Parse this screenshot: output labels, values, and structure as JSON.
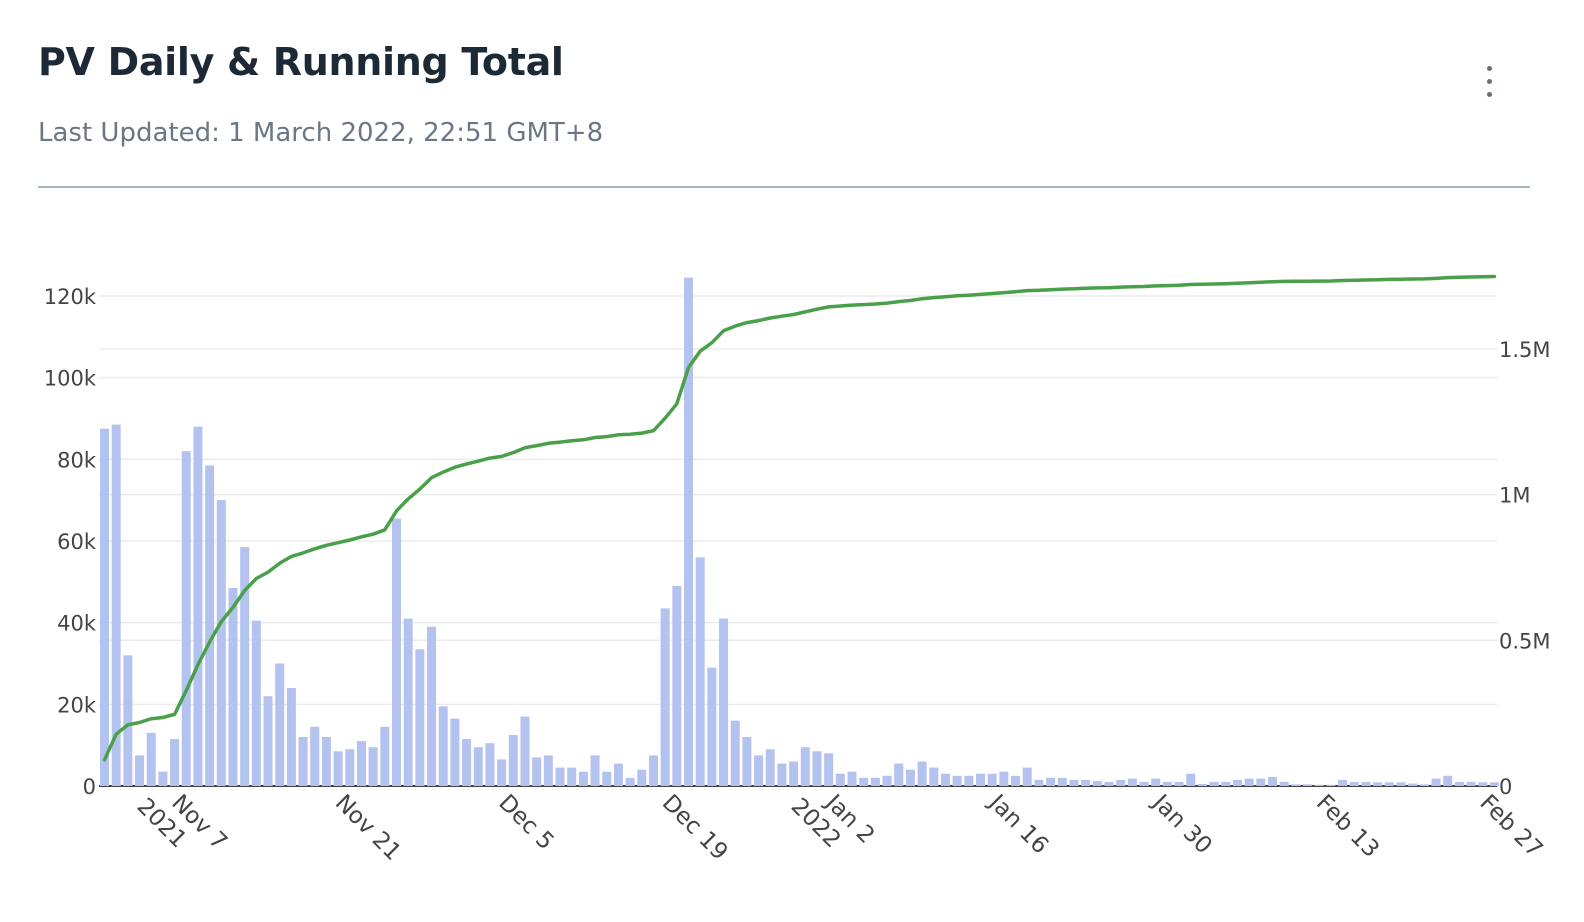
{
  "card": {
    "title": "PV Daily & Running Total",
    "subtitle": "Last Updated: 1 March 2022, 22:51 GMT+8",
    "menu_icon": "more-vertical-icon"
  },
  "chart_data": {
    "type": "bar",
    "start": "2021-11-01",
    "dates": [
      "2021-11-01",
      "2021-11-02",
      "2021-11-03",
      "2021-11-04",
      "2021-11-05",
      "2021-11-06",
      "2021-11-07",
      "2021-11-08",
      "2021-11-09",
      "2021-11-10",
      "2021-11-11",
      "2021-11-12",
      "2021-11-13",
      "2021-11-14",
      "2021-11-15",
      "2021-11-16",
      "2021-11-17",
      "2021-11-18",
      "2021-11-19",
      "2021-11-20",
      "2021-11-21",
      "2021-11-22",
      "2021-11-23",
      "2021-11-24",
      "2021-11-25",
      "2021-11-26",
      "2021-11-27",
      "2021-11-28",
      "2021-11-29",
      "2021-11-30",
      "2021-12-01",
      "2021-12-02",
      "2021-12-03",
      "2021-12-04",
      "2021-12-05",
      "2021-12-06",
      "2021-12-07",
      "2021-12-08",
      "2021-12-09",
      "2021-12-10",
      "2021-12-11",
      "2021-12-12",
      "2021-12-13",
      "2021-12-14",
      "2021-12-15",
      "2021-12-16",
      "2021-12-17",
      "2021-12-18",
      "2021-12-19",
      "2021-12-20",
      "2021-12-21",
      "2021-12-22",
      "2021-12-23",
      "2021-12-24",
      "2021-12-25",
      "2021-12-26",
      "2021-12-27",
      "2021-12-28",
      "2021-12-29",
      "2021-12-30",
      "2021-12-31",
      "2022-01-01",
      "2022-01-02",
      "2022-01-03",
      "2022-01-04",
      "2022-01-05",
      "2022-01-06",
      "2022-01-07",
      "2022-01-08",
      "2022-01-09",
      "2022-01-10",
      "2022-01-11",
      "2022-01-12",
      "2022-01-13",
      "2022-01-14",
      "2022-01-15",
      "2022-01-16",
      "2022-01-17",
      "2022-01-18",
      "2022-01-19",
      "2022-01-20",
      "2022-01-21",
      "2022-01-22",
      "2022-01-23",
      "2022-01-24",
      "2022-01-25",
      "2022-01-26",
      "2022-01-27",
      "2022-01-28",
      "2022-01-29",
      "2022-01-30",
      "2022-01-31",
      "2022-02-01",
      "2022-02-02",
      "2022-02-03",
      "2022-02-04",
      "2022-02-05",
      "2022-02-06",
      "2022-02-07",
      "2022-02-08",
      "2022-02-09",
      "2022-02-10",
      "2022-02-11",
      "2022-02-12",
      "2022-02-13",
      "2022-02-14",
      "2022-02-15",
      "2022-02-16",
      "2022-02-17",
      "2022-02-18",
      "2022-02-19",
      "2022-02-20",
      "2022-02-21",
      "2022-02-22",
      "2022-02-23",
      "2022-02-24",
      "2022-02-25",
      "2022-02-26",
      "2022-02-27",
      "2022-02-28"
    ],
    "series": [
      {
        "type": "bar",
        "axis": "left",
        "color": "#b4c2f0",
        "values": [
          87500,
          88500,
          32000,
          7500,
          13000,
          3500,
          11500,
          82000,
          88000,
          78500,
          70000,
          48500,
          58500,
          40500,
          22000,
          30000,
          24000,
          12000,
          14500,
          12000,
          8500,
          9000,
          11000,
          9500,
          14500,
          65500,
          41000,
          33500,
          39000,
          19500,
          16500,
          11500,
          9500,
          10500,
          6500,
          12500,
          17000,
          7000,
          7500,
          4500,
          4500,
          3500,
          7500,
          3500,
          5500,
          2000,
          4000,
          7500,
          43500,
          49000,
          124500,
          56000,
          29000,
          41000,
          16000,
          12000,
          7500,
          9000,
          5500,
          6000,
          9500,
          8500,
          8000,
          3000,
          3500,
          2000,
          2000,
          2500,
          5500,
          4000,
          6000,
          4500,
          3000,
          2500,
          2500,
          3000,
          3000,
          3500,
          2500,
          4500,
          1500,
          2000,
          2000,
          1500,
          1500,
          1200,
          1000,
          1500,
          1800,
          1000,
          1800,
          1000,
          1000,
          3000,
          500,
          1000,
          1000,
          1500,
          1800,
          1800,
          2200,
          1000,
          400,
          400,
          300,
          300,
          1500,
          1000,
          1000,
          900,
          900,
          900,
          600,
          400,
          1800,
          2500,
          1000,
          1000,
          900,
          900
        ]
      },
      {
        "type": "line",
        "axis": "right",
        "color": "#4aa04a",
        "values": [
          90000,
          178000,
          210000,
          218000,
          231000,
          235000,
          246000,
          328000,
          416000,
          494000,
          564000,
          613000,
          671000,
          712000,
          734000,
          764000,
          788000,
          800000,
          814000,
          826000,
          835000,
          844000,
          855000,
          864000,
          879000,
          944000,
          985000,
          1019000,
          1058000,
          1077000,
          1094000,
          1105000,
          1115000,
          1125000,
          1131000,
          1144000,
          1161000,
          1168000,
          1176000,
          1180000,
          1185000,
          1188000,
          1196000,
          1199000,
          1205000,
          1207000,
          1211000,
          1219000,
          1262000,
          1311000,
          1436000,
          1492000,
          1521000,
          1562000,
          1578000,
          1590000,
          1597000,
          1606000,
          1612000,
          1618000,
          1627000,
          1636000,
          1644000,
          1647000,
          1650000,
          1652000,
          1654000,
          1657000,
          1662000,
          1666000,
          1672000,
          1676000,
          1679000,
          1682000,
          1684000,
          1687000,
          1690000,
          1693000,
          1696000,
          1700000,
          1701000,
          1703000,
          1705000,
          1706000,
          1708000,
          1709000,
          1710000,
          1712000,
          1713000,
          1714000,
          1716000,
          1717000,
          1718000,
          1721000,
          1721500,
          1722500,
          1723500,
          1725000,
          1727000,
          1728500,
          1730500,
          1731500,
          1732000,
          1732300,
          1732600,
          1732900,
          1734400,
          1735400,
          1736400,
          1737300,
          1738200,
          1739100,
          1739700,
          1740100,
          1741900,
          1744400,
          1745400,
          1746400,
          1747300,
          1748200
        ]
      }
    ],
    "y_left": {
      "min": 0,
      "max": 125000,
      "ticks": [
        0,
        20000,
        40000,
        60000,
        80000,
        100000,
        120000
      ],
      "tick_labels": [
        "0",
        "20k",
        "40k",
        "60k",
        "80k",
        "100k",
        "120k"
      ]
    },
    "y_right": {
      "min": 0,
      "max": 1750000,
      "ticks": [
        0,
        500000,
        1000000,
        1500000
      ],
      "tick_labels": [
        "0",
        "0.5M",
        "1M",
        "1.5M"
      ]
    },
    "x_ticks": [
      {
        "date": "2021-11-07",
        "line1": "Nov 7",
        "line2": "2021"
      },
      {
        "date": "2021-11-21",
        "line1": "Nov 21",
        "line2": ""
      },
      {
        "date": "2021-12-05",
        "line1": "Dec 5",
        "line2": ""
      },
      {
        "date": "2021-12-19",
        "line1": "Dec 19",
        "line2": ""
      },
      {
        "date": "2022-01-02",
        "line1": "Jan 2",
        "line2": "2022"
      },
      {
        "date": "2022-01-16",
        "line1": "Jan 16",
        "line2": ""
      },
      {
        "date": "2022-01-30",
        "line1": "Jan 30",
        "line2": ""
      },
      {
        "date": "2022-02-13",
        "line1": "Feb 13",
        "line2": ""
      },
      {
        "date": "2022-02-27",
        "line1": "Feb 27",
        "line2": ""
      }
    ],
    "grid": true,
    "colors": {
      "grid": "#ebebeb",
      "tick_text": "#444444"
    }
  }
}
